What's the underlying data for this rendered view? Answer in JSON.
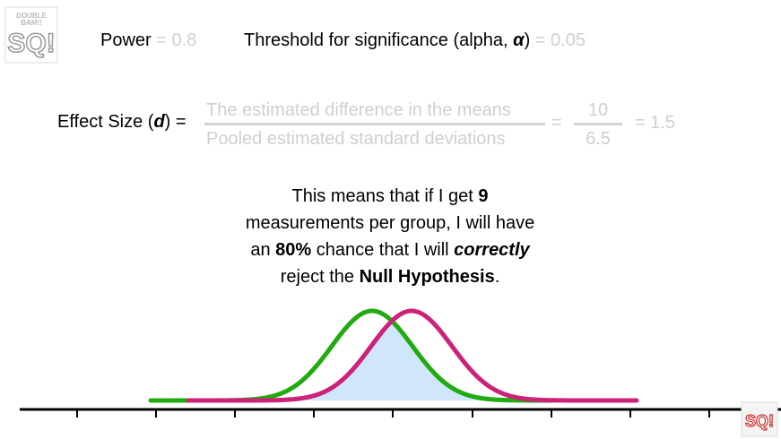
{
  "logo": {
    "main_text": "SQ!",
    "small_text": "DOUBLE BAM!!",
    "corner_text": "SQ!"
  },
  "power": {
    "label": "Power",
    "eq": "= 0.8"
  },
  "alpha": {
    "label": "Threshold for significance (alpha, ",
    "symbol": "α",
    "close": ")",
    "eq": "= 0.05"
  },
  "effect": {
    "label_prefix": "Effect Size (",
    "label_symbol": "d",
    "label_suffix": ") =",
    "numerator": "The estimated difference in the means",
    "denominator": "Pooled estimated standard deviations",
    "eq1": "=",
    "num_value": "10",
    "den_value": "6.5",
    "eq2": "= 1.5"
  },
  "message": {
    "p1": "This means that if I get ",
    "n": "9",
    "p2": "measurements per group, I will have",
    "p3": "an ",
    "pct": "80%",
    "p4": " chance that I will ",
    "correctly": "correctly",
    "p5": "reject the ",
    "null": "Null Hypothesis",
    "p6": "."
  },
  "colors": {
    "green": "#22aa11",
    "magenta": "#cc2277",
    "fill": "#cfe6fb",
    "axis": "#000000",
    "grey_text": "#cfcfcf"
  }
}
